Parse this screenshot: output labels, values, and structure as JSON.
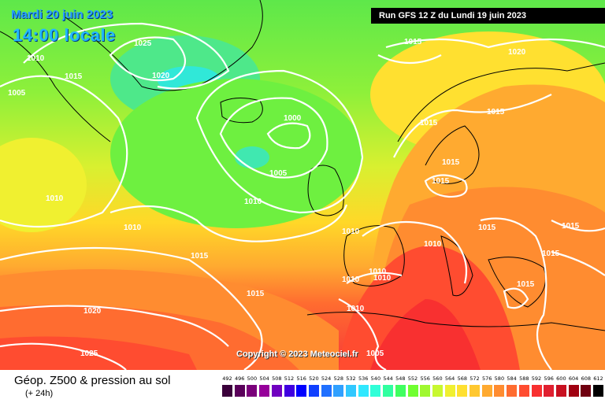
{
  "header": {
    "date": "Mardi 20 juin 2023",
    "time": "14:00 locale",
    "run": "Run GFS 12 Z du Lundi 19 juin 2023"
  },
  "footer": {
    "title": "Géop. Z500 & pression au sol",
    "subtitle": "(+ 24h)",
    "copyright": "Copyright © 2023 Meteociel.fr"
  },
  "legend": {
    "labels": [
      "492",
      "496",
      "500",
      "504",
      "508",
      "512",
      "516",
      "520",
      "524",
      "528",
      "532",
      "536",
      "540",
      "544",
      "548",
      "552",
      "556",
      "560",
      "564",
      "568",
      "572",
      "576",
      "580",
      "584",
      "588",
      "592",
      "596",
      "600",
      "604",
      "608",
      "612"
    ],
    "colors": [
      "#3a003a",
      "#5a005a",
      "#7a007a",
      "#96009a",
      "#7000c0",
      "#4000e0",
      "#0000ff",
      "#1040ff",
      "#2070ff",
      "#30a0ff",
      "#30c8ff",
      "#30e8ff",
      "#30ffd8",
      "#30ffa0",
      "#40ff60",
      "#70ff30",
      "#a0f830",
      "#c8f830",
      "#f0f030",
      "#ffe030",
      "#ffc830",
      "#ffaa30",
      "#ff8c30",
      "#ff6c30",
      "#ff4c30",
      "#f83030",
      "#e02030",
      "#c81020",
      "#a00010",
      "#700010",
      "#000000"
    ]
  },
  "isobars": [
    "1025",
    "1020",
    "1015",
    "1010",
    "1005",
    "1000",
    "1020",
    "1015",
    "1010",
    "1005",
    "1010",
    "1015",
    "1010",
    "1010",
    "1015",
    "1015",
    "1015",
    "1015",
    "1015",
    "1010",
    "1010",
    "1010",
    "1010",
    "1010",
    "1005",
    "1015",
    "1015",
    "1015",
    "1015",
    "1020",
    "1025"
  ]
}
